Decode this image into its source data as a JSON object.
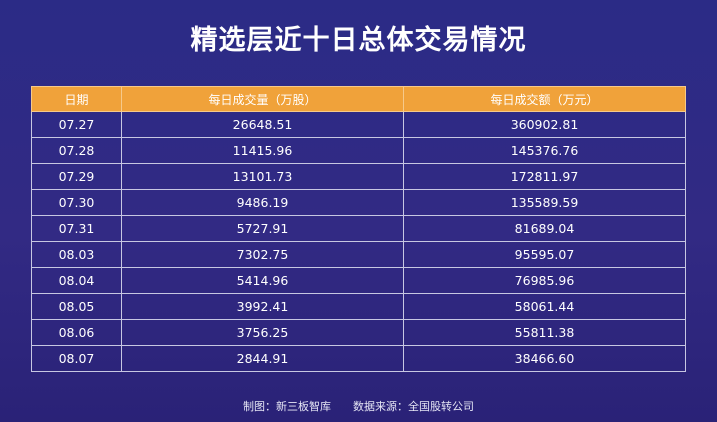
{
  "title": "精选层近十日总体交易情况",
  "table": {
    "headers": [
      "日期",
      "每日成交量（万股）",
      "每日成交额（万元）"
    ],
    "rows": [
      [
        "07.27",
        "26648.51",
        "360902.81"
      ],
      [
        "07.28",
        "11415.96",
        "145376.76"
      ],
      [
        "07.29",
        "13101.73",
        "172811.97"
      ],
      [
        "07.30",
        "9486.19",
        "135589.59"
      ],
      [
        "07.31",
        "5727.91",
        "81689.04"
      ],
      [
        "08.03",
        "7302.75",
        "95595.07"
      ],
      [
        "08.04",
        "5414.96",
        "76985.96"
      ],
      [
        "08.05",
        "3992.41",
        "58061.44"
      ],
      [
        "08.06",
        "3756.25",
        "55811.38"
      ],
      [
        "08.07",
        "2844.91",
        "38466.60"
      ]
    ]
  },
  "footer": {
    "producer": "制图：新三板智库",
    "source": "数据来源：全国股转公司"
  },
  "colors": {
    "background": "#2f2a85",
    "header": "#f0a23a"
  }
}
